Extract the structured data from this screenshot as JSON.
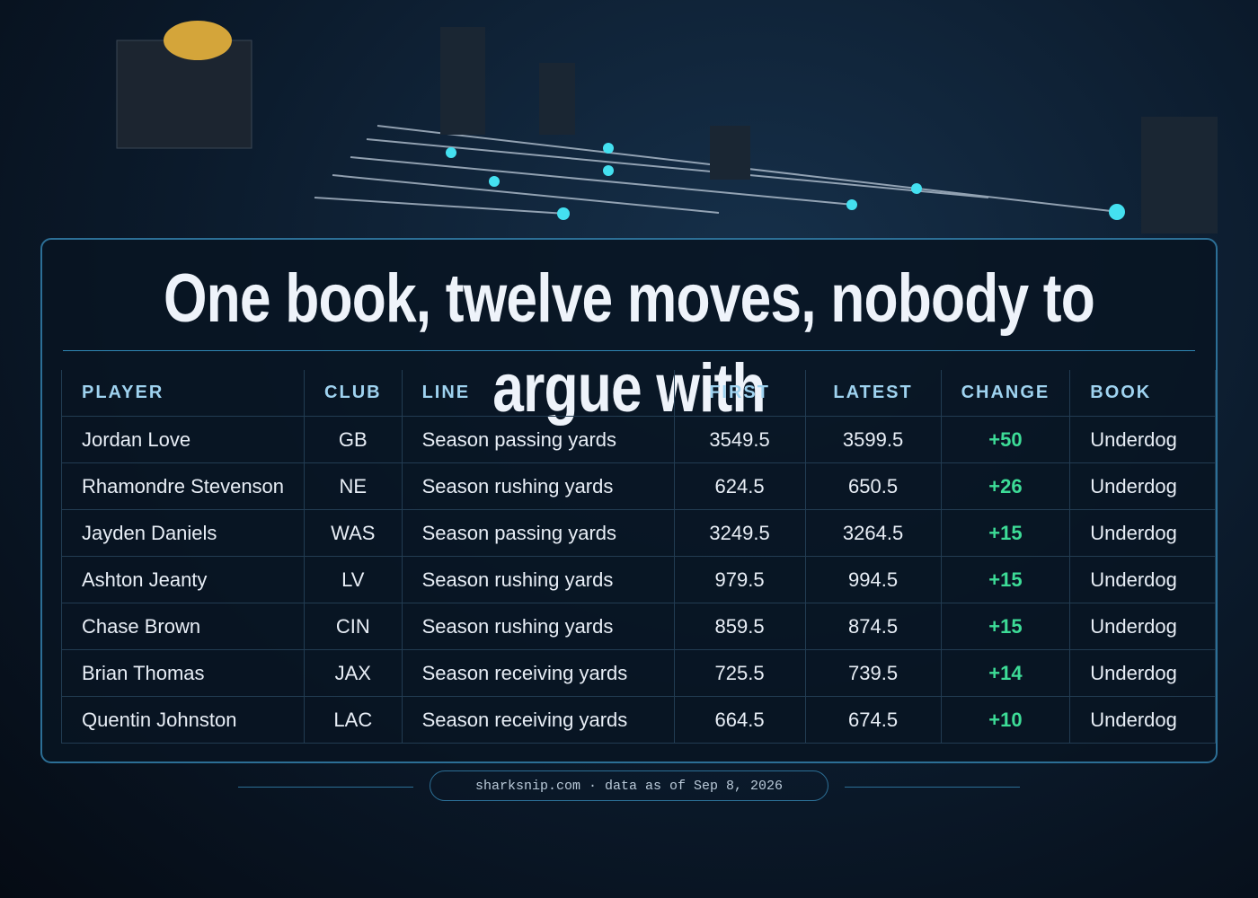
{
  "header": {
    "title": "One book, twelve moves, nobody to argue with"
  },
  "table": {
    "columns": [
      "PLAYER",
      "CLUB",
      "LINE",
      "FIRST",
      "LATEST",
      "CHANGE",
      "BOOK"
    ],
    "rows": [
      [
        "Jordan Love",
        "GB",
        "Season passing yards",
        "3549.5",
        "3599.5",
        "+50",
        "Underdog"
      ],
      [
        "Rhamondre Stevenson",
        "NE",
        "Season rushing yards",
        "624.5",
        "650.5",
        "+26",
        "Underdog"
      ],
      [
        "Jayden Daniels",
        "WAS",
        "Season passing yards",
        "3249.5",
        "3264.5",
        "+15",
        "Underdog"
      ],
      [
        "Ashton Jeanty",
        "LV",
        "Season rushing yards",
        "979.5",
        "994.5",
        "+15",
        "Underdog"
      ],
      [
        "Chase Brown",
        "CIN",
        "Season rushing yards",
        "859.5",
        "874.5",
        "+15",
        "Underdog"
      ],
      [
        "Brian Thomas",
        "JAX",
        "Season receiving yards",
        "725.5",
        "739.5",
        "+14",
        "Underdog"
      ],
      [
        "Quentin Johnston",
        "LAC",
        "Season receiving yards",
        "664.5",
        "674.5",
        "+10",
        "Underdog"
      ]
    ]
  },
  "footer": {
    "source": "sharksnip.com · data as of Sep 8, 2026"
  }
}
